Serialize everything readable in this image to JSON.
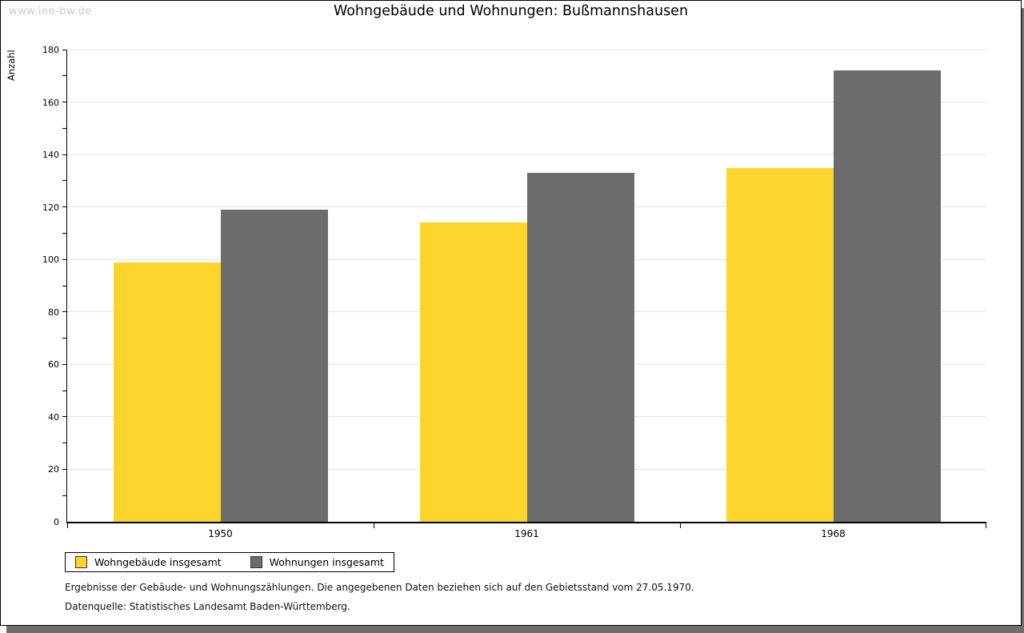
{
  "watermark": "www.leo-bw.de",
  "title": "Wohngebäude und Wohnungen: Bußmannshausen",
  "chart_data": {
    "type": "bar",
    "title": "Wohngebäude und Wohnungen: Bußmannshausen",
    "categories": [
      "1950",
      "1961",
      "1968"
    ],
    "series": [
      {
        "name": "Wohngebäude insgesamt",
        "color": "#FDD42E",
        "values": [
          99,
          114,
          135
        ]
      },
      {
        "name": "Wohnungen insgesamt",
        "color": "#6C6C6C",
        "values": [
          119,
          133,
          172
        ]
      }
    ],
    "xlabel": "",
    "ylabel": "Anzahl",
    "ylim": [
      0,
      180
    ],
    "y_major_step": 20,
    "y_minor_step": 10,
    "grid": true,
    "legend_position": "bottom-left",
    "colors": {
      "gridline": "#e4e4e4",
      "axis": "#000000",
      "watermark": "#c9c9c9",
      "shadow": "#6f6f6f"
    }
  },
  "footnotes": [
    "Ergebnisse der Gebäude- und Wohnungszählungen. Die angegebenen Daten beziehen sich auf den Gebietsstand vom 27.05.1970.",
    "Datenquelle: Statistisches Landesamt Baden-Württemberg."
  ]
}
